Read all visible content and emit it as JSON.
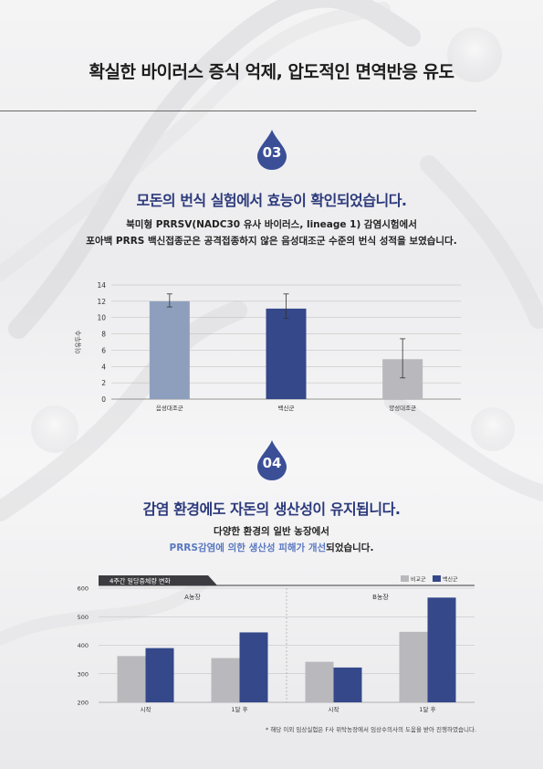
{
  "page": {
    "title": "확실한 바이러스 증식 억제, 압도적인 면역반응 유도"
  },
  "section3": {
    "number": "03",
    "title": "모돈의 번식 실험에서 효능이 확인되었습니다.",
    "sub_line1": "북미형 PRRSV(NADC30 유사 바이러스, lineage 1) 감염시험에서",
    "sub_line2": "포아백 PRRS 백신접종군은 공격접종하지 않은 음성대조군 수준의 번식 성적을 보였습니다."
  },
  "section4": {
    "number": "04",
    "title": "감염 환경에도 자돈의 생산성이 유지됩니다.",
    "sub_line1": "다양한 환경의 일반 농장에서",
    "sub_line2_highlight": "PRRS감염에 의한 생산성 피해가 개선",
    "sub_line2_rest": "되었습니다."
  },
  "footnote": "* 해당 이외 임상실험은 F사 위탁농장에서 임상수의사의 도움을 받아 진행하였습니다.",
  "colors": {
    "title_navy": "#2c3a7c",
    "drop_blue": "#3b4f97",
    "bar_light": "#8e9fbd",
    "bar_navy": "#34488a",
    "bar_gray": "#b9b9bd",
    "highlight_blue": "#5a78c0"
  },
  "chart_data": [
    {
      "type": "bar",
      "title": "",
      "ylabel": "이유두수",
      "xlabel": "",
      "categories": [
        "음성대조군",
        "백신군",
        "양성대조군"
      ],
      "values": [
        12.0,
        11.1,
        4.9
      ],
      "error_low": [
        11.3,
        9.9,
        2.6
      ],
      "error_high": [
        12.9,
        12.9,
        7.4
      ],
      "colors": [
        "#8e9fbd",
        "#34488a",
        "#b9b9bd"
      ],
      "ylim": [
        0,
        14
      ],
      "yticks": [
        0,
        2,
        4,
        6,
        8,
        10,
        12,
        14
      ],
      "grid": true
    },
    {
      "type": "bar",
      "title": "4주간 일당증체량 변화",
      "xlabel": "",
      "ylabel": "",
      "groups": [
        "A농장",
        "B농장"
      ],
      "categories": [
        "시작",
        "1달 후",
        "시작",
        "1달 후"
      ],
      "series": [
        {
          "name": "비교군",
          "values": [
            362,
            355,
            342,
            447
          ]
        },
        {
          "name": "백신군",
          "values": [
            390,
            445,
            322,
            567
          ]
        }
      ],
      "ylim": [
        200,
        600
      ],
      "yticks": [
        200,
        300,
        400,
        500,
        600
      ],
      "grid": true,
      "legend": "top-right"
    }
  ]
}
